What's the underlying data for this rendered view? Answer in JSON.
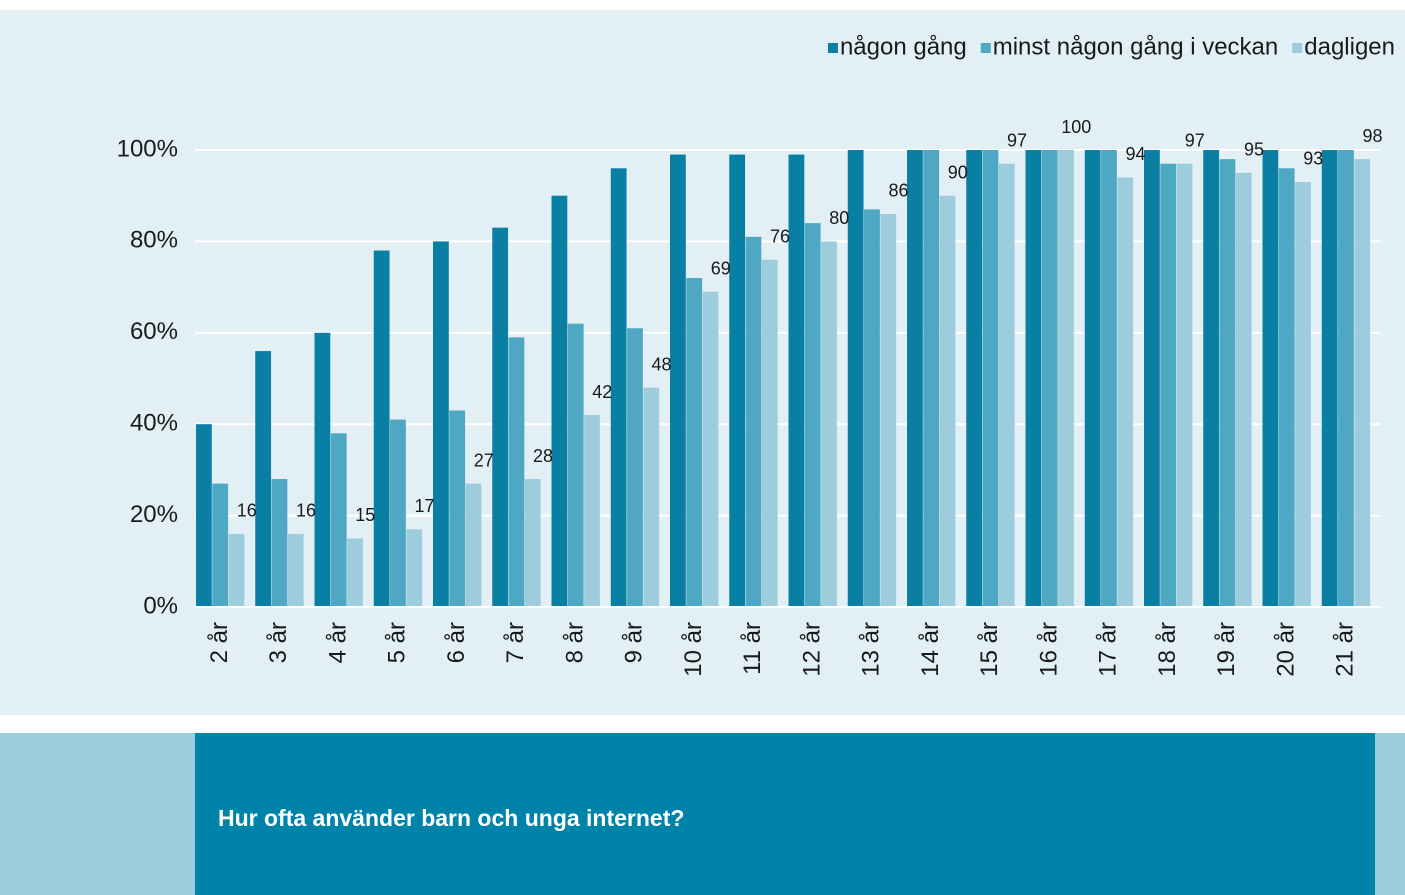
{
  "chart_data": {
    "type": "bar",
    "title": "Hur ofta använder barn och unga internet?",
    "categories": [
      "2 år",
      "3 år",
      "4 år",
      "5 år",
      "6 år",
      "7 år",
      "8 år",
      "9 år",
      "10 år",
      "11 år",
      "12 år",
      "13 år",
      "14 år",
      "15 år",
      "16 år",
      "17 år",
      "18 år",
      "19 år",
      "20 år",
      "21 år"
    ],
    "series": [
      {
        "name": "någon gång",
        "color": "#0a7fa4",
        "values": [
          40,
          56,
          60,
          78,
          80,
          83,
          90,
          96,
          99,
          99,
          99,
          100,
          100,
          100,
          100,
          100,
          100,
          100,
          100,
          100
        ]
      },
      {
        "name": "minst någon gång i veckan",
        "color": "#4ea7c3",
        "values": [
          27,
          28,
          38,
          41,
          43,
          59,
          62,
          61,
          72,
          81,
          84,
          87,
          100,
          100,
          100,
          100,
          97,
          98,
          96,
          100
        ]
      },
      {
        "name": "dagligen",
        "color": "#9dcddd",
        "values": [
          16,
          16,
          15,
          17,
          27,
          28,
          42,
          48,
          69,
          76,
          80,
          86,
          90,
          97,
          100,
          94,
          97,
          95,
          93,
          98
        ]
      }
    ],
    "data_labels_series": 2,
    "ylim": [
      0,
      100
    ],
    "yticks": [
      {
        "value": 0,
        "label": "0%"
      },
      {
        "value": 20,
        "label": "20%"
      },
      {
        "value": 40,
        "label": "40%"
      },
      {
        "value": 60,
        "label": "60%"
      },
      {
        "value": 80,
        "label": "80%"
      },
      {
        "value": 100,
        "label": "100%"
      }
    ],
    "grid": true,
    "legend": "upper right"
  }
}
